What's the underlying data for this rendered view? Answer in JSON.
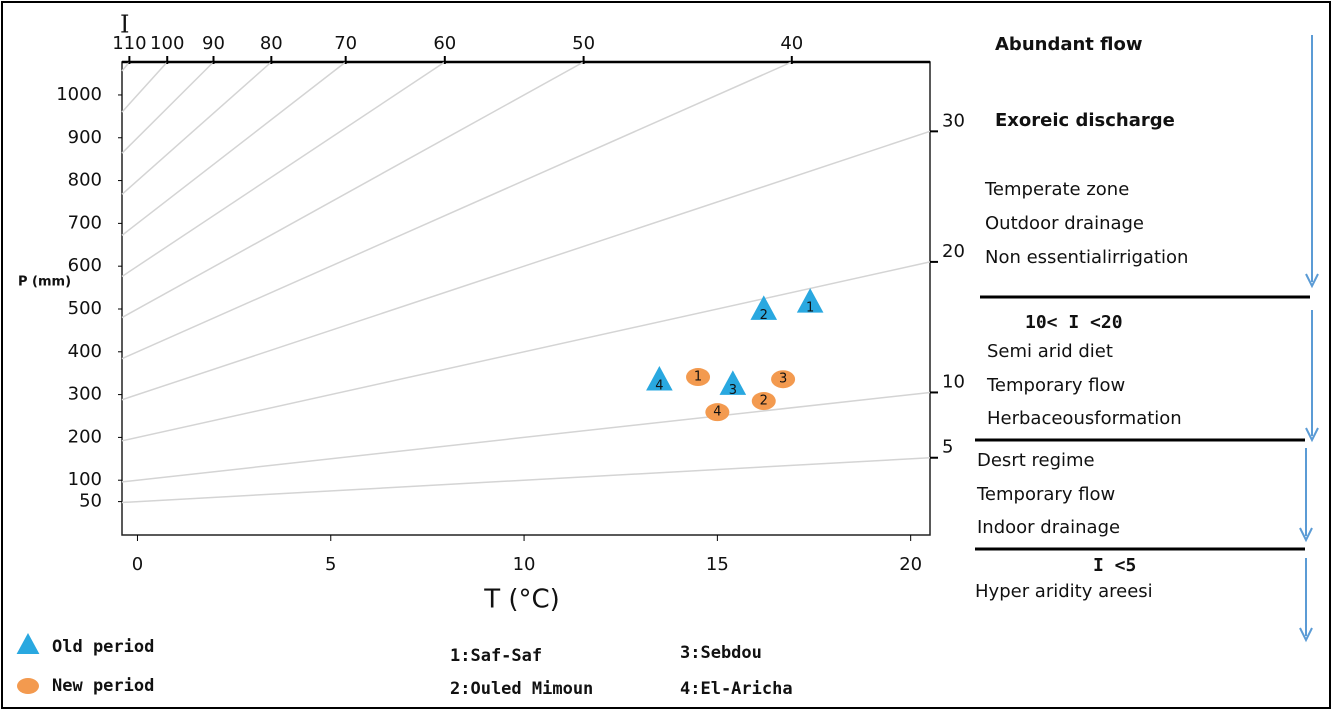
{
  "chart_data": {
    "type": "scatter",
    "index_label": "I",
    "ylabel": "P (mm)",
    "xlabel": "T (°C)",
    "xlim": [
      -0.4,
      20.5
    ],
    "xticks": [
      0,
      5,
      10,
      15,
      20
    ],
    "ylim": [
      -28,
      1077
    ],
    "yticks": [
      50,
      100,
      200,
      300,
      400,
      500,
      600,
      700,
      800,
      900,
      1000
    ],
    "index_lines": [
      5,
      10,
      20,
      30,
      40,
      50,
      60,
      70,
      80,
      90,
      100,
      110
    ],
    "series": [
      {
        "name": "Old period",
        "marker": "triangle",
        "color": "#29a8e0",
        "x": [
          17.4,
          16.2,
          15.4,
          13.5
        ],
        "values": [
          509,
          492,
          317,
          327
        ],
        "labels": [
          "1",
          "2",
          "3",
          "4"
        ]
      },
      {
        "name": "New period",
        "marker": "circle",
        "color": "#f39a4f",
        "x": [
          14.5,
          16.2,
          16.7,
          15.0
        ],
        "values": [
          341,
          285,
          336,
          259
        ],
        "labels": [
          "1",
          "2",
          "3",
          "4"
        ]
      }
    ],
    "stations": [
      "1:Saf-Saf",
      "2:Ouled Mimoun",
      "3:Sebdou",
      "4:El-Aricha"
    ]
  },
  "zones": [
    {
      "headings": [
        "Abundant flow",
        "Exoreic discharge"
      ],
      "items": [
        "Temperate zone",
        "Outdoor drainage",
        "Non essentialirrigation"
      ]
    },
    {
      "headings": [
        "10< I <20"
      ],
      "items": [
        "Semi arid diet",
        "Temporary flow",
        "Herbaceousformation"
      ]
    },
    {
      "items": [
        "Desrt regime",
        "Temporary flow",
        "Indoor drainage"
      ]
    },
    {
      "headings": [
        "I <5"
      ],
      "items": [
        "Hyper aridity areesi"
      ]
    }
  ]
}
